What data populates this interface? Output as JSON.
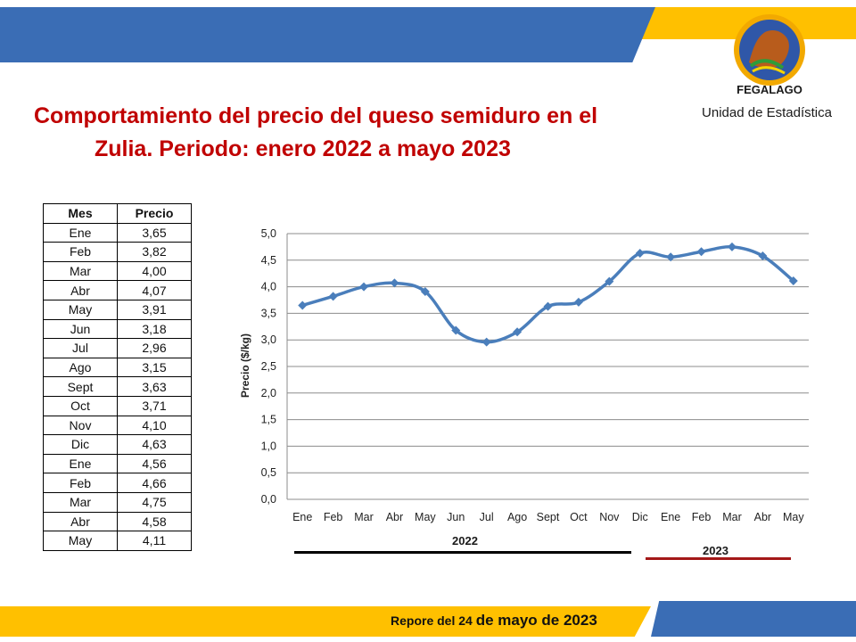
{
  "header": {
    "org_name": "FEGALAGO",
    "unit": "Unidad de Estadística"
  },
  "title": {
    "line1": "Comportamiento del precio del queso semiduro en el",
    "line2": "Zulia. Periodo: enero 2022 a mayo 2023"
  },
  "table": {
    "headers": [
      "Mes",
      "Precio"
    ],
    "rows": [
      [
        "Ene",
        "3,65"
      ],
      [
        "Feb",
        "3,82"
      ],
      [
        "Mar",
        "4,00"
      ],
      [
        "Abr",
        "4,07"
      ],
      [
        "May",
        "3,91"
      ],
      [
        "Jun",
        "3,18"
      ],
      [
        "Jul",
        "2,96"
      ],
      [
        "Ago",
        "3,15"
      ],
      [
        "Sept",
        "3,63"
      ],
      [
        "Oct",
        "3,71"
      ],
      [
        "Nov",
        "4,10"
      ],
      [
        "Dic",
        "4,63"
      ],
      [
        "Ene",
        "4,56"
      ],
      [
        "Feb",
        "4,66"
      ],
      [
        "Mar",
        "4,75"
      ],
      [
        "Abr",
        "4,58"
      ],
      [
        "May",
        "4,11"
      ]
    ]
  },
  "chart_data": {
    "type": "line",
    "categories": [
      "Ene",
      "Feb",
      "Mar",
      "Abr",
      "May",
      "Jun",
      "Jul",
      "Ago",
      "Sept",
      "Oct",
      "Nov",
      "Dic",
      "Ene",
      "Feb",
      "Mar",
      "Abr",
      "May"
    ],
    "series": [
      {
        "values": [
          3.65,
          3.82,
          4.0,
          4.07,
          3.91,
          3.18,
          2.96,
          3.15,
          3.63,
          3.71,
          4.1,
          4.63,
          4.56,
          4.66,
          4.75,
          4.58,
          4.11
        ]
      }
    ],
    "ylabel": "Precio  ($/kg)",
    "ylim": [
      0,
      5
    ],
    "yticks": [
      "0,0",
      "0,5",
      "1,0",
      "1,5",
      "2,0",
      "2,5",
      "3,0",
      "3,5",
      "4,0",
      "4,5",
      "5,0"
    ],
    "grid": true,
    "line_color": "#4a7ebb",
    "groups": [
      {
        "label": "2022",
        "color": "#000000"
      },
      {
        "label": "2023",
        "color": "#a31818"
      }
    ]
  },
  "footer": {
    "prefix": "Repore del 24 ",
    "date": "de mayo de 2023"
  },
  "colors": {
    "blue": "#3a6db5",
    "yellow": "#ffc000",
    "title_red": "#c00000"
  }
}
